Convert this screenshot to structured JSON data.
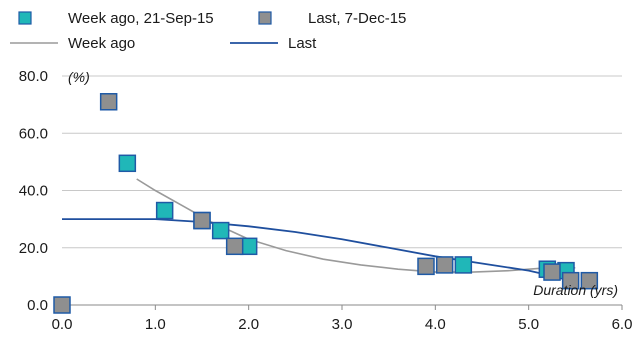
{
  "chart_data": {
    "type": "scatter",
    "title": "",
    "ylabel": "(%)",
    "xlabel": "Duration (yrs)",
    "xlim": [
      0,
      6
    ],
    "ylim": [
      0,
      80
    ],
    "x_ticks": [
      "0.0",
      "1.0",
      "2.0",
      "3.0",
      "4.0",
      "5.0",
      "6.0"
    ],
    "y_ticks": [
      "0.0",
      "20.0",
      "40.0",
      "60.0",
      "80.0"
    ],
    "grid": "horizontal",
    "legend_position": "top",
    "colors": {
      "week_ago": "#20b7b8",
      "last": "#8f8f8f",
      "marker_border": "#1f5aa6",
      "week_ago_line": "#9a9a9a",
      "last_line": "#1f4f9e",
      "grid": "#c8c8c8"
    },
    "series": [
      {
        "name": "Week ago, 21-Sep-15",
        "kind": "points",
        "x": [
          0.7,
          1.1,
          1.5,
          1.7,
          2.0,
          4.3,
          5.2,
          5.4
        ],
        "y": [
          49.5,
          33.0,
          29.5,
          26.0,
          20.5,
          14.0,
          12.5,
          12.0
        ]
      },
      {
        "name": "Last, 7-Dec-15",
        "kind": "points",
        "x": [
          0.0,
          0.5,
          1.5,
          1.85,
          3.9,
          4.1,
          5.25,
          5.45,
          5.65
        ],
        "y": [
          0.0,
          71.0,
          29.5,
          20.5,
          13.5,
          14.0,
          11.5,
          8.5,
          8.5
        ]
      },
      {
        "name": "Week ago",
        "kind": "line",
        "x": [
          0.8,
          1.0,
          1.3,
          1.6,
          2.0,
          2.4,
          2.8,
          3.2,
          3.6,
          4.0,
          4.4,
          4.8,
          5.2,
          5.5
        ],
        "y": [
          44.0,
          40.0,
          34.5,
          29.0,
          23.0,
          19.0,
          16.0,
          14.0,
          12.5,
          11.5,
          11.5,
          12.0,
          13.0,
          13.0
        ]
      },
      {
        "name": "Last",
        "kind": "line",
        "x": [
          0.0,
          0.5,
          1.0,
          1.5,
          2.0,
          2.5,
          3.0,
          3.5,
          4.0,
          4.5,
          5.0,
          5.2,
          5.5
        ],
        "y": [
          30.0,
          30.0,
          30.0,
          29.0,
          27.5,
          25.5,
          23.0,
          20.0,
          17.0,
          14.5,
          12.0,
          10.5,
          10.0
        ]
      }
    ]
  }
}
